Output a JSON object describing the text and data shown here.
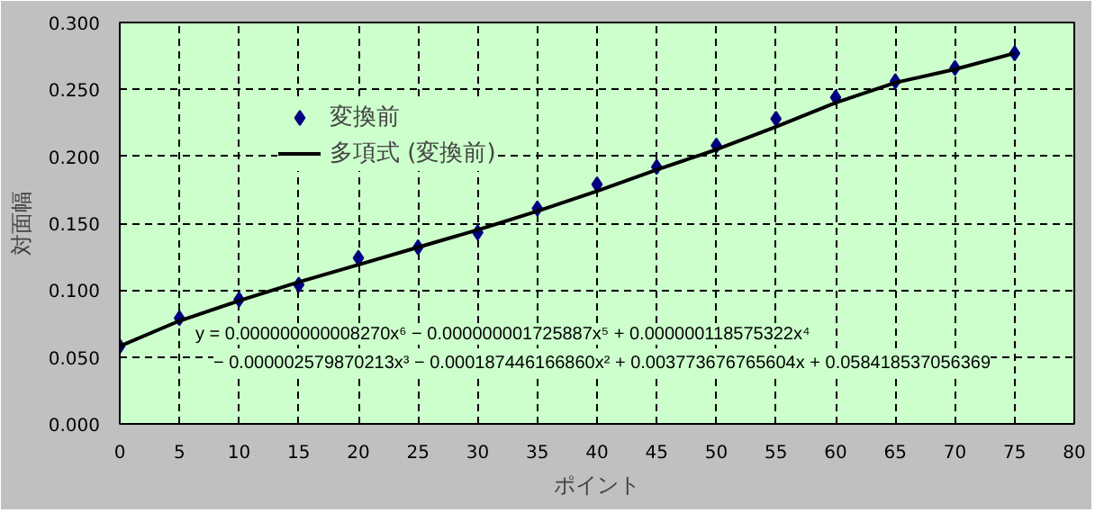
{
  "chart_data": {
    "type": "scatter",
    "xlabel": "ポイント",
    "ylabel": "対面幅",
    "x": [
      0,
      5,
      10,
      15,
      20,
      25,
      30,
      35,
      40,
      45,
      50,
      55,
      60,
      65,
      70,
      75
    ],
    "series": [
      {
        "name": "変換前",
        "color": "#000080",
        "marker": "diamond",
        "values": [
          0.058,
          0.079,
          0.093,
          0.104,
          0.124,
          0.132,
          0.143,
          0.161,
          0.179,
          0.192,
          0.208,
          0.228,
          0.244,
          0.256,
          0.266,
          0.277
        ]
      },
      {
        "name": "多項式 (変換前)",
        "type": "line",
        "color": "#000000",
        "marker": "none",
        "line_style": "solid",
        "x": [
          0,
          5,
          10,
          15,
          20,
          25,
          30,
          35,
          40,
          45,
          50,
          55,
          60,
          65,
          70,
          75
        ],
        "values": [
          0.058,
          0.077,
          0.092,
          0.106,
          0.119,
          0.132,
          0.145,
          0.159,
          0.174,
          0.19,
          0.205,
          0.222,
          0.24,
          0.255,
          0.265,
          0.277
        ]
      }
    ],
    "xlim": [
      0,
      80
    ],
    "xticks": [
      0,
      5,
      10,
      15,
      20,
      25,
      30,
      35,
      40,
      45,
      50,
      55,
      60,
      65,
      70,
      75,
      80
    ],
    "ylim": [
      0,
      0.3
    ],
    "yticks": [
      {
        "value": 0,
        "label": "0.000"
      },
      {
        "value": 0.05,
        "label": "0.050"
      },
      {
        "value": 0.1,
        "label": "0.100"
      },
      {
        "value": 0.15,
        "label": "0.150"
      },
      {
        "value": 0.2,
        "label": "0.200"
      },
      {
        "value": 0.25,
        "label": "0.250"
      },
      {
        "value": 0.3,
        "label": "0.300"
      }
    ],
    "grid": true,
    "legend": "top left",
    "annotations": [
      "y = 0.000000000008270x⁶ − 0.000000001725887x⁵ + 0.000000118575322x⁴",
      "− 0.000002579870213x³ − 0.000187446166860x² + 0.003773676765604x + 0.058418537056369"
    ]
  }
}
